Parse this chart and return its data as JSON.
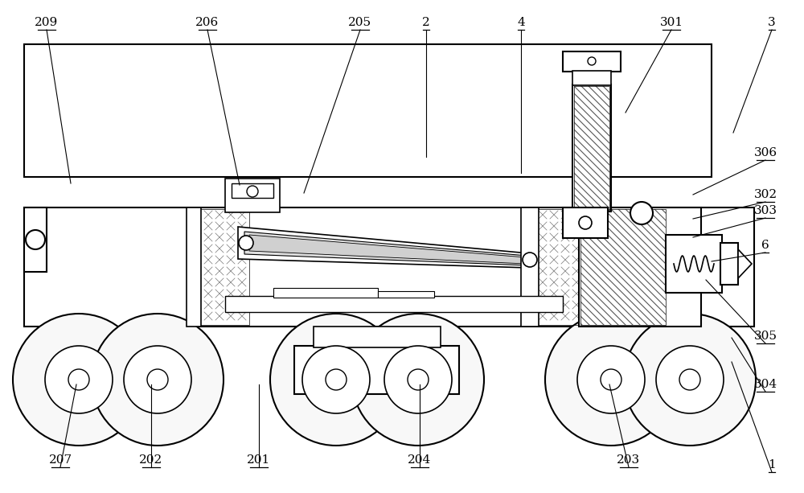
{
  "bg_color": "#ffffff",
  "fig_width": 10.0,
  "fig_height": 6.13,
  "labels_data": [
    [
      "209",
      58,
      28,
      88,
      228
    ],
    [
      "206",
      258,
      28,
      298,
      230
    ],
    [
      "205",
      448,
      28,
      378,
      240
    ],
    [
      "2",
      530,
      28,
      530,
      195
    ],
    [
      "4",
      648,
      28,
      648,
      215
    ],
    [
      "301",
      835,
      28,
      778,
      140
    ],
    [
      "3",
      960,
      28,
      912,
      165
    ],
    [
      "306",
      952,
      190,
      862,
      242
    ],
    [
      "302",
      952,
      242,
      862,
      272
    ],
    [
      "303",
      952,
      262,
      862,
      295
    ],
    [
      "6",
      952,
      305,
      885,
      325
    ],
    [
      "305",
      952,
      418,
      878,
      348
    ],
    [
      "304",
      952,
      478,
      910,
      420
    ],
    [
      "1",
      960,
      578,
      910,
      450
    ],
    [
      "207",
      75,
      572,
      95,
      478
    ],
    [
      "202",
      188,
      572,
      188,
      478
    ],
    [
      "201",
      322,
      572,
      322,
      478
    ],
    [
      "204",
      522,
      572,
      522,
      478
    ],
    [
      "203",
      782,
      572,
      758,
      478
    ]
  ]
}
